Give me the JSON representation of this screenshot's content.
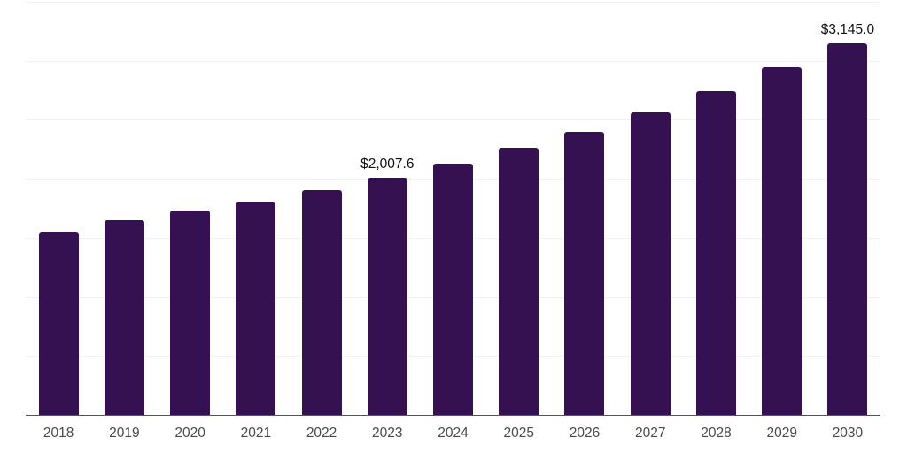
{
  "chart_data": {
    "type": "bar",
    "title": "",
    "xlabel": "",
    "ylabel": "",
    "categories": [
      "2018",
      "2019",
      "2020",
      "2021",
      "2022",
      "2023",
      "2024",
      "2025",
      "2026",
      "2027",
      "2028",
      "2029",
      "2030"
    ],
    "values": [
      1555,
      1650,
      1735,
      1810,
      1905,
      2007.6,
      2130,
      2260,
      2400,
      2565,
      2745,
      2945,
      3145
    ],
    "data_labels": [
      "",
      "",
      "",
      "",
      "",
      "$2,007.6",
      "",
      "",
      "",
      "",
      "",
      "",
      "$3,145.0"
    ],
    "ylim": [
      0,
      3500
    ],
    "grid_step": 500,
    "grid": true,
    "legend_position": "none"
  },
  "style": {
    "bar_color": "#361151",
    "grid_color": "#f2f2f2",
    "axis_color": "#555555",
    "tick_label_color": "#4a4a4a",
    "data_label_color": "#111111",
    "background": "#ffffff"
  }
}
